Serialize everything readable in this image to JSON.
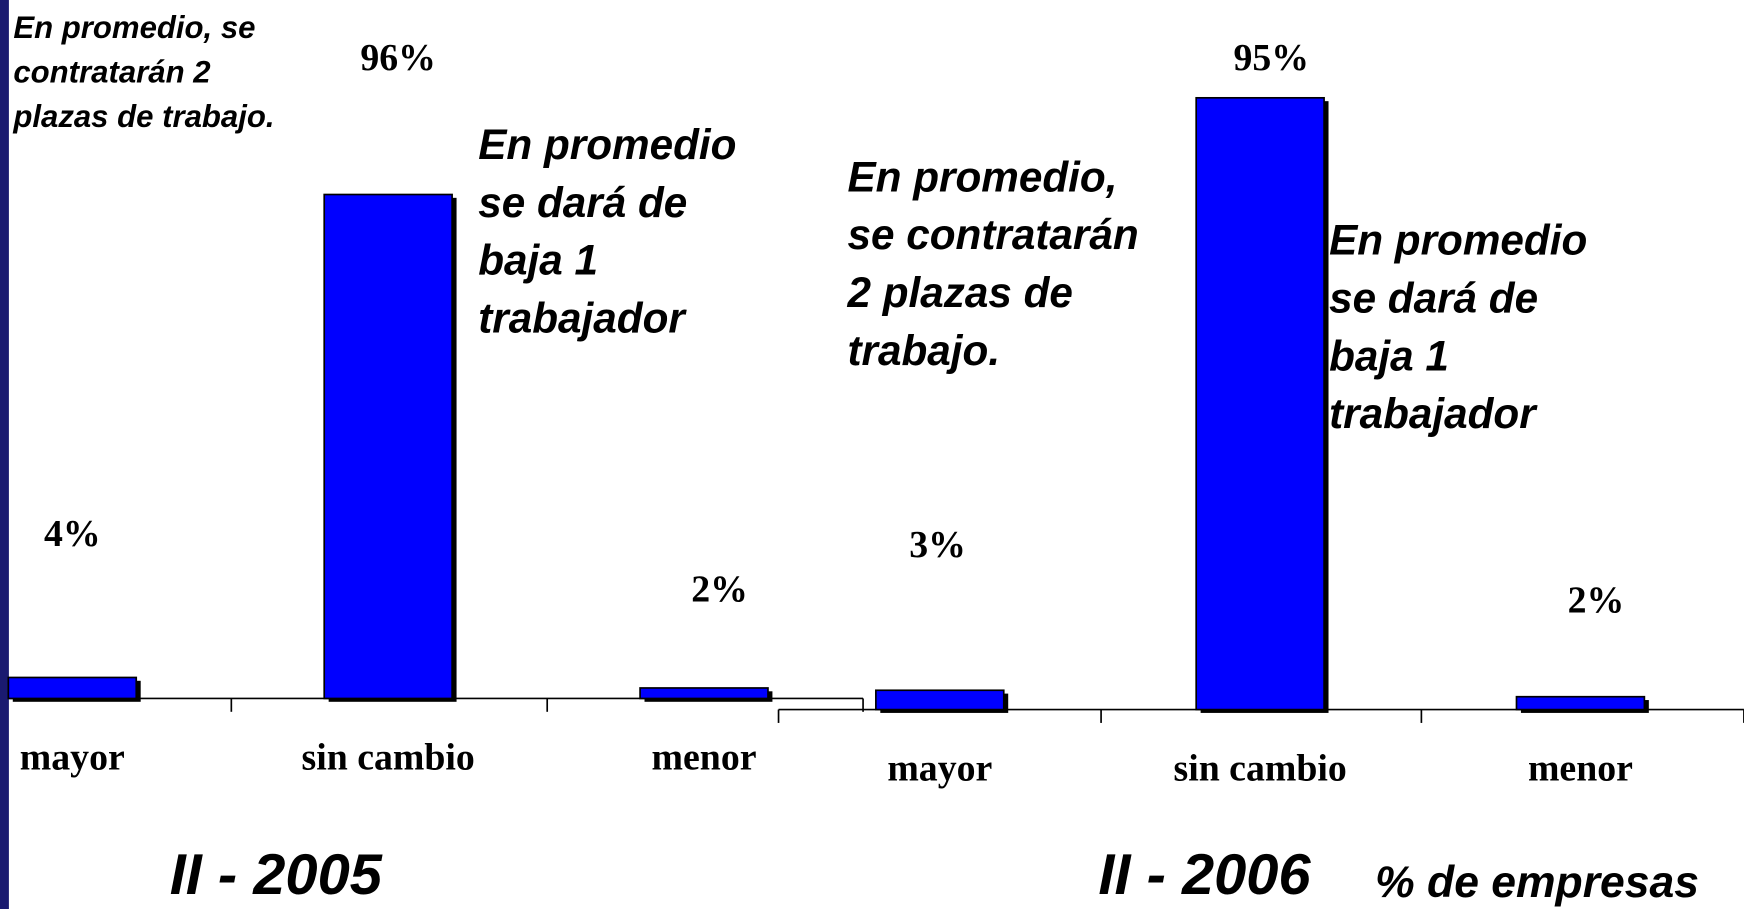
{
  "chart_data": [
    {
      "type": "bar",
      "title": "II - 2005",
      "categories": [
        "mayor",
        "sin cambio",
        "menor"
      ],
      "values": [
        4,
        96,
        2
      ],
      "value_labels": [
        "4%",
        "96%",
        "2%"
      ],
      "color": "#0000ff",
      "ylim": [
        0,
        100
      ],
      "annotations": [
        [
          "En promedio, se",
          "contratarán 2",
          "plazas de trabajo."
        ],
        [
          "En promedio",
          "se dará de",
          "baja 1",
          "trabajador"
        ]
      ]
    },
    {
      "type": "bar",
      "title": "II - 2006",
      "ylabel": "% de empresas",
      "categories": [
        "mayor",
        "sin cambio",
        "menor"
      ],
      "values": [
        3,
        95,
        2
      ],
      "value_labels": [
        "3%",
        "95%",
        "2%"
      ],
      "color": "#0000ff",
      "ylim": [
        0,
        100
      ],
      "annotations": [
        [
          "En promedio,",
          "se contratarán",
          "2 plazas de",
          "trabajo."
        ],
        [
          "En promedio",
          "se dará de",
          "baja 1",
          "trabajador"
        ]
      ]
    }
  ]
}
